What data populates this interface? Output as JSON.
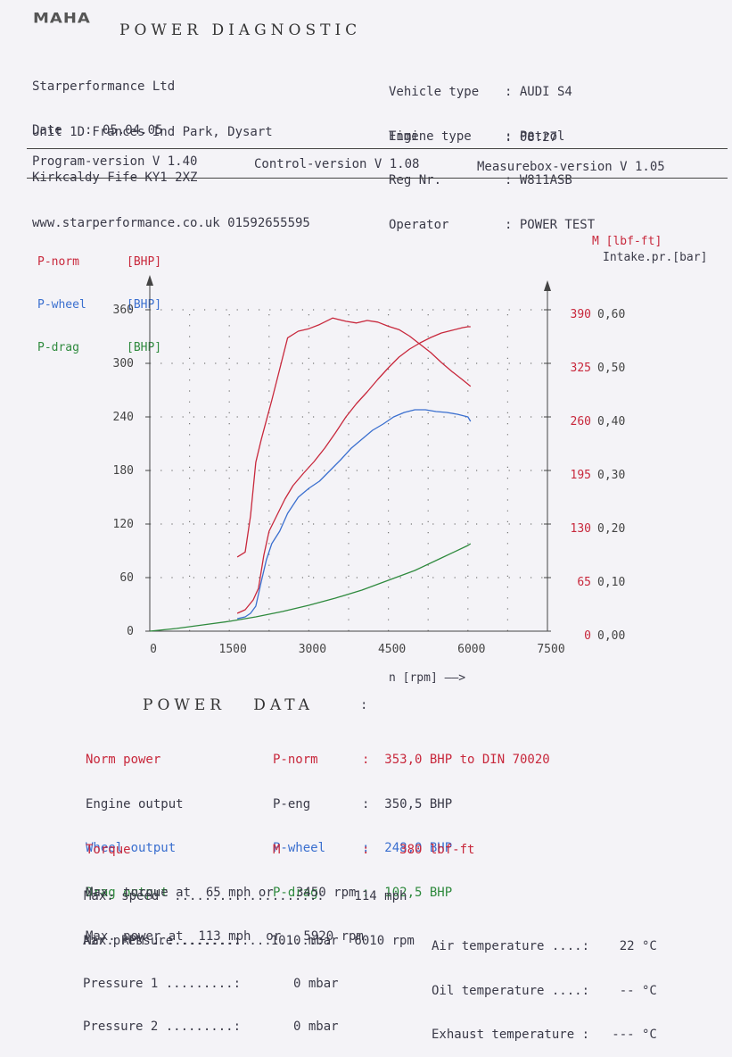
{
  "header": {
    "logo": "MAHA",
    "title": "POWER DIAGNOSTIC",
    "company": [
      "Starperformance Ltd",
      "Unit 1D Frances Ind Park, Dysart",
      "Kirkcaldy Fife KY1 2XZ",
      "www.starperformance.co.uk 01592655595"
    ],
    "date_label": "Date   :",
    "date": "05.04.05",
    "vehicle_rows": [
      {
        "label": "Vehicle type",
        "value": ": AUDI S4"
      },
      {
        "label": "Engine type",
        "value": ": Petrol"
      },
      {
        "label": "Reg Nr.",
        "value": ": W811ASB"
      },
      {
        "label": "Operator",
        "value": ": POWER TEST"
      }
    ],
    "time_label": "Time",
    "time": ": 08:27"
  },
  "versions": {
    "program": "Program-version V 1.40",
    "control": "Control-version V 1.08",
    "measurebox": "Measurebox-version V 1.05"
  },
  "legend": {
    "left": [
      {
        "name": "P-norm",
        "unit": "[BHP]",
        "color": "#c8283c"
      },
      {
        "name": "P-wheel",
        "unit": "[BHP]",
        "color": "#3a6fcf"
      },
      {
        "name": "P-drag",
        "unit": "[BHP]",
        "color": "#2f8a3e"
      }
    ],
    "right_torque": "M [lbf-ft]",
    "right_intake": "Intake.pr.[bar]"
  },
  "chart_data": {
    "type": "line",
    "xlabel": "n [rpm]",
    "xlim": [
      0,
      7500
    ],
    "x_ticks": [
      "0",
      "1500",
      "3000",
      "4500",
      "6000",
      "7500"
    ],
    "ylim_left": [
      0,
      360
    ],
    "y_ticks_left": [
      "0",
      "60",
      "120",
      "180",
      "240",
      "300",
      "360"
    ],
    "y_ticks_right_torque": [
      "0",
      "65",
      "130",
      "195",
      "260",
      "325",
      "390"
    ],
    "y_ticks_right_intake": [
      "0,00",
      "0,10",
      "0,20",
      "0,30",
      "0,40",
      "0,50",
      "0,60"
    ],
    "grid": true,
    "series": [
      {
        "name": "P-norm",
        "color": "#c8283c",
        "x": [
          1650,
          1800,
          1950,
          2050,
          2150,
          2250,
          2400,
          2550,
          2700,
          2900,
          3100,
          3300,
          3500,
          3700,
          3900,
          4100,
          4300,
          4500,
          4700,
          4900,
          5100,
          5300,
          5500,
          5700,
          5900,
          6000,
          6050
        ],
        "values": [
          20,
          24,
          35,
          48,
          85,
          112,
          130,
          148,
          163,
          177,
          190,
          205,
          222,
          240,
          255,
          268,
          282,
          295,
          307,
          316,
          323,
          329,
          334,
          337,
          340,
          341,
          341
        ]
      },
      {
        "name": "P-wheel",
        "color": "#3a6fcf",
        "x": [
          1650,
          1800,
          1900,
          2000,
          2100,
          2200,
          2300,
          2450,
          2600,
          2800,
          3000,
          3200,
          3400,
          3600,
          3800,
          4000,
          4200,
          4400,
          4600,
          4800,
          5000,
          5200,
          5400,
          5600,
          5800,
          6000,
          6050
        ],
        "values": [
          14,
          16,
          20,
          28,
          55,
          80,
          98,
          112,
          132,
          150,
          160,
          168,
          180,
          192,
          205,
          215,
          225,
          232,
          240,
          245,
          248,
          248,
          246,
          245,
          243,
          240,
          235
        ]
      },
      {
        "name": "P-drag",
        "color": "#2f8a3e",
        "x": [
          0,
          500,
          1000,
          1500,
          2000,
          2500,
          3000,
          3500,
          4000,
          4500,
          5000,
          5500,
          6000,
          6050
        ],
        "values": [
          0,
          3,
          7,
          11,
          16,
          22,
          29,
          37,
          46,
          57,
          68,
          82,
          96,
          98
        ]
      },
      {
        "name": "M",
        "color": "#c8283c",
        "axis": "torque",
        "x": [
          1650,
          1800,
          1900,
          2000,
          2100,
          2200,
          2300,
          2450,
          2600,
          2800,
          3000,
          3200,
          3450,
          3700,
          3900,
          4100,
          4300,
          4500,
          4700,
          4900,
          5100,
          5300,
          5500,
          5700,
          5900,
          6050
        ],
        "values": [
          90,
          96,
          140,
          205,
          232,
          256,
          280,
          318,
          356,
          364,
          367,
          372,
          380,
          376,
          374,
          377,
          375,
          370,
          366,
          358,
          348,
          338,
          326,
          315,
          305,
          297
        ]
      }
    ]
  },
  "power_data": {
    "heading": "POWER   DATA",
    "colon": ":",
    "rows": [
      {
        "label": "Norm power",
        "sym": "P-norm",
        "value": ":  353,0 BHP to DIN 70020",
        "color": "#c8283c"
      },
      {
        "label": "Engine output",
        "sym": "P-eng",
        "value": ":  350,5 BHP",
        "color": "#3a3a48"
      },
      {
        "label": "Wheel output",
        "sym": "P-wheel",
        "value": ":  248,0 BHP",
        "color": "#3a6fcf"
      },
      {
        "label": "Drag output",
        "sym": "P-drag",
        "value": ":  102,5 BHP",
        "color": "#2f8a3e"
      }
    ],
    "max_power": "Max. power at  113 mph  or   5920 rpm",
    "torque_label": "Torque",
    "torque_sym": "M",
    "torque_value": ":    380 lbf-ft",
    "max_torque": "Max. torque at  65 mph or   3450 rpm",
    "max_speed": "Max. speed  ...................:    114 mph",
    "max_rpm": "Max. RPM .......................:   6010 rpm",
    "air_pressure": "Air pressure .......:    1010 mbar",
    "pressure1": "Pressure 1 .........:       0 mbar",
    "pressure2": "Pressure 2 .........:       0 mbar",
    "air_temp": "Air temperature ....:    22 °C",
    "oil_temp": "Oil temperature ....:    -- °C",
    "exhaust_temp": "Exhaust temperature :   --- °C"
  }
}
